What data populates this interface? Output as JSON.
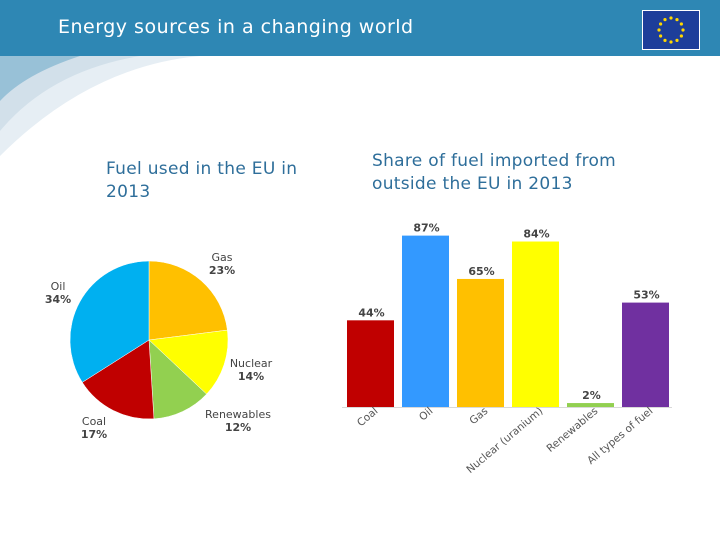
{
  "header": {
    "title": "Energy sources in a changing world"
  },
  "icons": {
    "flag": "eu-flag-icon"
  },
  "colors": {
    "header_bg": "#2e87b4",
    "subtitle": "#2e6e9a",
    "flag_bg": "#1d3e9a",
    "stars": "#ffd700"
  },
  "chart_data": [
    {
      "type": "pie",
      "title": "Fuel used in the EU in 2013",
      "slices": [
        {
          "label": "Gas",
          "value": 23,
          "value_label": "23%",
          "color": "#ffc000"
        },
        {
          "label": "Nuclear",
          "value": 14,
          "value_label": "14%",
          "color": "#ffff00"
        },
        {
          "label": "Renewables",
          "value": 12,
          "value_label": "12%",
          "color": "#92d050"
        },
        {
          "label": "Coal",
          "value": 17,
          "value_label": "17%",
          "color": "#c00000"
        },
        {
          "label": "Oil",
          "value": 34,
          "value_label": "34%",
          "color": "#00b0f0"
        }
      ],
      "start_angle_deg": 0,
      "direction": "clockwise"
    },
    {
      "type": "bar",
      "title": "Share of fuel imported from outside the EU in 2013",
      "categories": [
        "Coal",
        "Oil",
        "Gas",
        "Nuclear (uranium)",
        "Renewables",
        "All types of fuel"
      ],
      "values": [
        44,
        87,
        65,
        84,
        2,
        53
      ],
      "value_labels": [
        "44%",
        "87%",
        "65%",
        "84%",
        "2%",
        "53%"
      ],
      "colors": [
        "#c00000",
        "#3399ff",
        "#ffc000",
        "#ffff00",
        "#92d050",
        "#7030a0"
      ],
      "ylim": [
        0,
        100
      ],
      "grid": false
    }
  ]
}
